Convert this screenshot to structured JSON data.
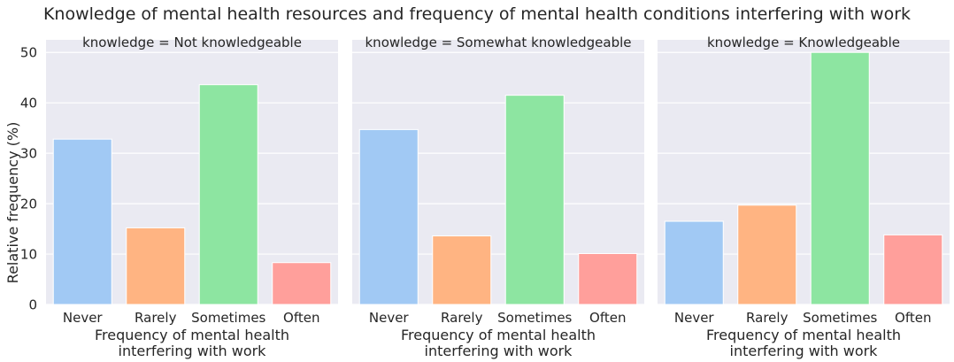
{
  "figure": {
    "title": "Knowledge of mental health resources and frequency of mental health conditions interfering with work"
  },
  "colors": {
    "panel_bg": "#eaeaf2",
    "grid": "#ffffff",
    "text": "#262626",
    "bars": [
      "#a1c9f4",
      "#ffb482",
      "#8de5a1",
      "#ff9f9b"
    ]
  },
  "chart_data": [
    {
      "type": "bar",
      "title": "knowledge = Not knowledgeable",
      "categories": [
        "Never",
        "Rarely",
        "Sometimes",
        "Often"
      ],
      "values": [
        32.8,
        15.2,
        43.6,
        8.3
      ],
      "xlabel": "Frequency of mental health\ninterfering with work",
      "ylabel": "Relative frequency (%)",
      "yticks": [
        "0",
        "10",
        "20",
        "30",
        "40",
        "50"
      ],
      "ylim": [
        0,
        52.5
      ],
      "grid": true
    },
    {
      "type": "bar",
      "title": "knowledge = Somewhat knowledgeable",
      "categories": [
        "Never",
        "Rarely",
        "Sometimes",
        "Often"
      ],
      "values": [
        34.7,
        13.6,
        41.5,
        10.1
      ],
      "xlabel": "Frequency of mental health\ninterfering with work",
      "ylim": [
        0,
        52.5
      ],
      "grid": true
    },
    {
      "type": "bar",
      "title": "knowledge = Knowledgeable",
      "categories": [
        "Never",
        "Rarely",
        "Sometimes",
        "Often"
      ],
      "values": [
        16.5,
        19.7,
        50.0,
        13.8
      ],
      "xlabel": "Frequency of mental health\ninterfering with work",
      "ylim": [
        0,
        52.5
      ],
      "grid": true
    }
  ]
}
